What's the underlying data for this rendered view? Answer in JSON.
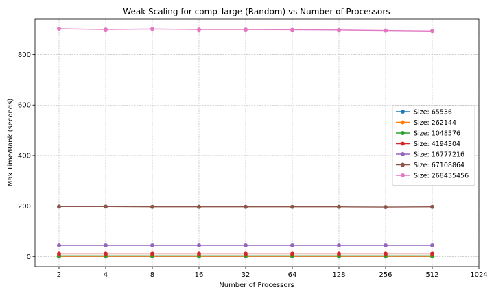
{
  "chart_data": {
    "type": "line",
    "title": "Weak Scaling for comp_large (Random) vs Number of Processors",
    "xlabel": "Number of Processors",
    "ylabel": "Max Time/Rank (seconds)",
    "x_scale": "log2",
    "x": [
      2,
      4,
      8,
      16,
      32,
      64,
      128,
      256,
      512
    ],
    "x_ticks": [
      "2",
      "4",
      "8",
      "16",
      "32",
      "64",
      "128",
      "256",
      "512",
      "1024"
    ],
    "y_ticks": [
      "0",
      "200",
      "400",
      "600",
      "800"
    ],
    "ylim": [
      -40,
      940
    ],
    "grid": true,
    "legend_position": "center-right",
    "series": [
      {
        "name": "Size: 65536",
        "color": "#1f77b4",
        "values": [
          0.2,
          0.2,
          0.2,
          0.2,
          0.2,
          0.2,
          0.2,
          0.2,
          0.2
        ]
      },
      {
        "name": "Size: 262144",
        "color": "#ff7f0e",
        "values": [
          0.7,
          0.7,
          0.7,
          0.7,
          0.7,
          0.7,
          0.7,
          0.7,
          0.7
        ]
      },
      {
        "name": "Size: 1048576",
        "color": "#2ca02c",
        "values": [
          2.6,
          2.6,
          2.6,
          2.6,
          2.6,
          2.6,
          2.6,
          2.6,
          2.6
        ]
      },
      {
        "name": "Size: 4194304",
        "color": "#d62728",
        "values": [
          10.5,
          10.5,
          10.5,
          10.5,
          10.5,
          10.5,
          10.5,
          10.5,
          10.5
        ]
      },
      {
        "name": "Size: 16777216",
        "color": "#9467bd",
        "values": [
          44,
          44,
          44,
          44,
          44,
          44,
          44,
          44,
          44
        ]
      },
      {
        "name": "Size: 67108864",
        "color": "#8c564b",
        "values": [
          198,
          198,
          197,
          197,
          197,
          197,
          197,
          196,
          197
        ]
      },
      {
        "name": "Size: 268435456",
        "color": "#e377c2",
        "values": [
          902,
          899,
          901,
          899,
          899,
          898,
          897,
          895,
          893
        ]
      }
    ]
  }
}
